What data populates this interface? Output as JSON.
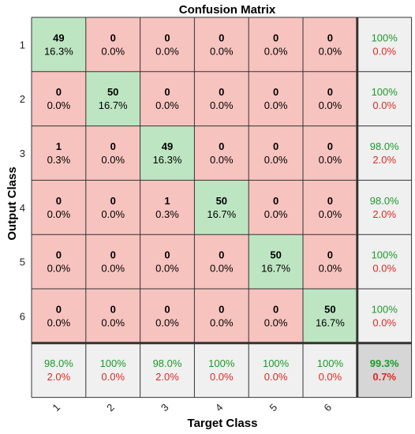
{
  "chart_data": {
    "type": "heatmap",
    "title": "Confusion Matrix",
    "xlabel": "Target Class",
    "ylabel": "Output Class",
    "x_tick_labels": [
      "1",
      "2",
      "3",
      "4",
      "5",
      "6"
    ],
    "y_tick_labels": [
      "1",
      "2",
      "3",
      "4",
      "5",
      "6"
    ],
    "counts": [
      [
        49,
        0,
        0,
        0,
        0,
        0
      ],
      [
        0,
        50,
        0,
        0,
        0,
        0
      ],
      [
        1,
        0,
        49,
        0,
        0,
        0
      ],
      [
        0,
        0,
        1,
        50,
        0,
        0
      ],
      [
        0,
        0,
        0,
        0,
        50,
        0
      ],
      [
        0,
        0,
        0,
        0,
        0,
        50
      ]
    ],
    "percentages": [
      [
        "16.3%",
        "0.0%",
        "0.0%",
        "0.0%",
        "0.0%",
        "0.0%"
      ],
      [
        "0.0%",
        "16.7%",
        "0.0%",
        "0.0%",
        "0.0%",
        "0.0%"
      ],
      [
        "0.3%",
        "0.0%",
        "16.3%",
        "0.0%",
        "0.0%",
        "0.0%"
      ],
      [
        "0.0%",
        "0.0%",
        "0.3%",
        "16.7%",
        "0.0%",
        "0.0%"
      ],
      [
        "0.0%",
        "0.0%",
        "0.0%",
        "0.0%",
        "16.7%",
        "0.0%"
      ],
      [
        "0.0%",
        "0.0%",
        "0.0%",
        "0.0%",
        "0.0%",
        "16.7%"
      ]
    ],
    "row_summary": [
      {
        "correct": "100%",
        "error": "0.0%"
      },
      {
        "correct": "100%",
        "error": "0.0%"
      },
      {
        "correct": "98.0%",
        "error": "2.0%"
      },
      {
        "correct": "98.0%",
        "error": "2.0%"
      },
      {
        "correct": "100%",
        "error": "0.0%"
      },
      {
        "correct": "100%",
        "error": "0.0%"
      }
    ],
    "column_summary": [
      {
        "correct": "98.0%",
        "error": "2.0%"
      },
      {
        "correct": "100%",
        "error": "0.0%"
      },
      {
        "correct": "98.0%",
        "error": "2.0%"
      },
      {
        "correct": "100%",
        "error": "0.0%"
      },
      {
        "correct": "100%",
        "error": "0.0%"
      },
      {
        "correct": "100%",
        "error": "0.0%"
      }
    ],
    "overall": {
      "correct": "99.3%",
      "error": "0.7%"
    },
    "colors": {
      "diagonal_cell": "#bde5c2",
      "off_diagonal_cell": "#f7c3bf",
      "summary_cell": "#f0f0f0",
      "overall_cell": "#d6d6d6",
      "correct_text": "#1d9a2a",
      "error_text": "#d92b22",
      "grid_line": "#333333"
    }
  }
}
